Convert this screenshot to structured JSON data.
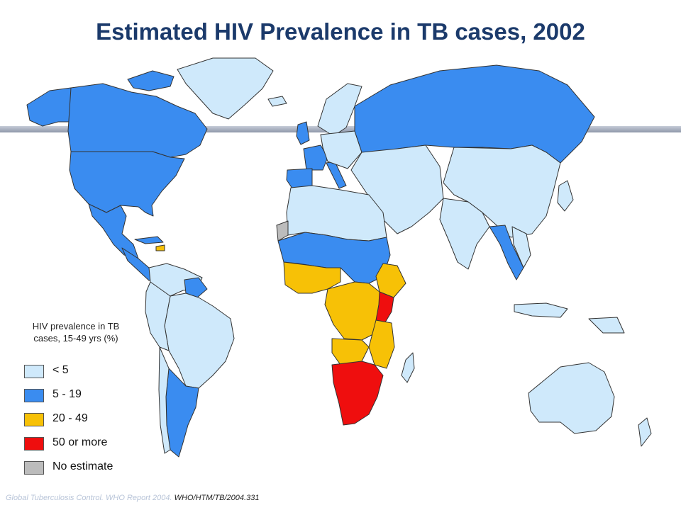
{
  "title": "Estimated HIV Prevalence in TB cases, 2002",
  "legend": {
    "title_line1": "HIV prevalence in TB",
    "title_line2": "cases, 15-49 yrs (%)",
    "items": [
      {
        "label": "< 5",
        "color": "#cfe9fb"
      },
      {
        "label": "5 - 19",
        "color": "#3a8cf0"
      },
      {
        "label": "20 - 49",
        "color": "#f7c106"
      },
      {
        "label": "50 or more",
        "color": "#ef0e0e"
      },
      {
        "label": "No estimate",
        "color": "#bcbcbc"
      }
    ]
  },
  "source": {
    "faint": "Global Tuberculosis Control. WHO Report 2004.",
    "main": "WHO/HTM/TB/2004.331"
  }
}
